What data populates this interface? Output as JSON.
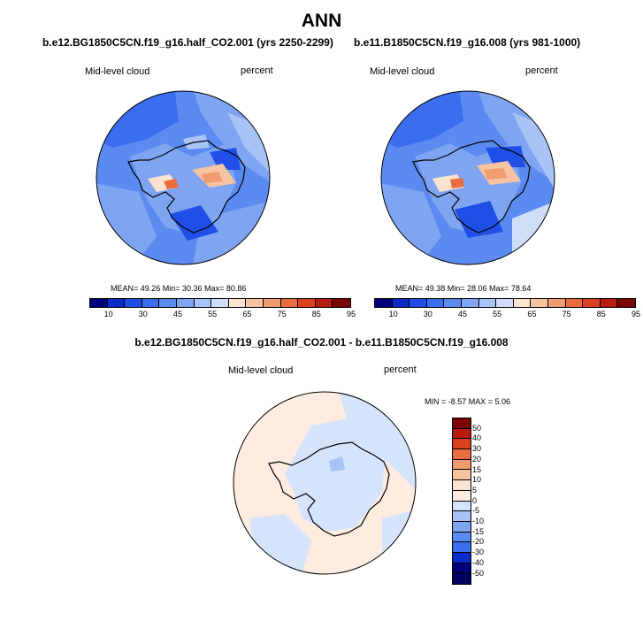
{
  "title": "ANN",
  "panels": [
    {
      "case": "b.e12.BG1850C5CN.f19_g16.half_CO2.001 (yrs 2250-2299)",
      "variable": "Mid-level cloud",
      "units": "percent",
      "stats": "MEAN= 49.26  Min= 30.36  Max= 80.86"
    },
    {
      "case": "b.e11.B1850C5CN.f19_g16.008 (yrs 981-1000)",
      "variable": "Mid-level cloud",
      "units": "percent",
      "stats": "MEAN= 49.38  Min= 28.06  Max= 78.64"
    }
  ],
  "diff": {
    "case": "b.e12.BG1850C5CN.f19_g16.half_CO2.001 - b.e11.B1850C5CN.f19_g16.008",
    "variable": "Mid-level cloud",
    "units": "percent",
    "stats": "MIN = -8.57 MAX = 5.06"
  },
  "colorbar_abs": {
    "labels": [
      "10",
      "30",
      "45",
      "55",
      "65",
      "75",
      "85",
      "95"
    ],
    "colors": [
      "#00007f",
      "#0a2bc8",
      "#1f4fe6",
      "#3a6eee",
      "#5b8bf0",
      "#7fa4f2",
      "#a8c3f5",
      "#cfddf8",
      "#fbe3cf",
      "#f7c4a1",
      "#f19c70",
      "#ea6d40",
      "#dc3f20",
      "#b51c0f",
      "#7a0404"
    ]
  },
  "colorbar_diff": {
    "labels": [
      "50",
      "40",
      "30",
      "20",
      "15",
      "10",
      "5",
      "0",
      "-5",
      "-10",
      "-15",
      "-20",
      "-30",
      "-40",
      "-50"
    ],
    "colors": [
      "#7a0404",
      "#b51c0f",
      "#dc3f20",
      "#ea6d40",
      "#f19c70",
      "#f7c4a1",
      "#fbe3cf",
      "#fdecdf",
      "#d6e4fb",
      "#a8c3f5",
      "#7fa4f2",
      "#5b8bf0",
      "#3a6eee",
      "#0a2bc8",
      "#00007f",
      "#000060"
    ]
  }
}
